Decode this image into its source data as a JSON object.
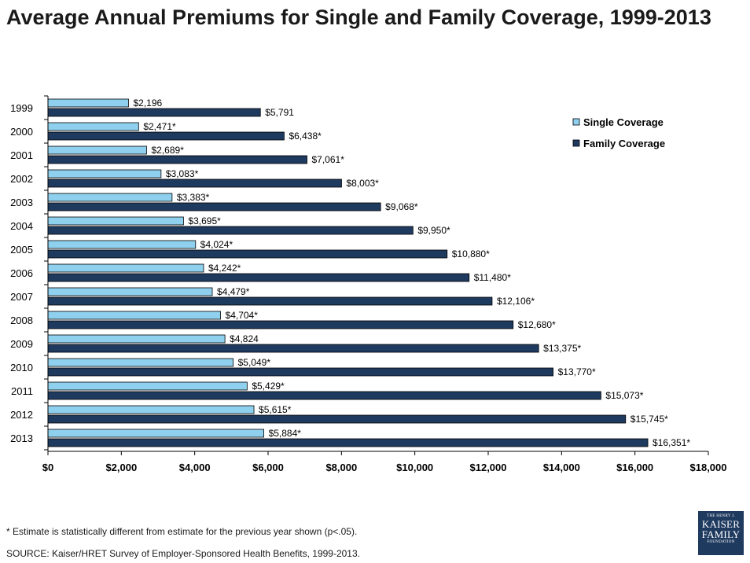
{
  "title": "Average Annual Premiums for Single and Family Coverage, 1999-2013",
  "footnote": "* Estimate is statistically different from estimate for the previous year shown (p<.05).",
  "source": "SOURCE:  Kaiser/HRET Survey of Employer-Sponsored Health Benefits, 1999-2013.",
  "logo": {
    "line1": "THE HENRY J.",
    "line2": "KAISER",
    "line3": "FAMILY",
    "line4": "FOUNDATION"
  },
  "colors": {
    "single": "#8fd0ee",
    "family": "#1f3a5f",
    "bar_border": "#000000",
    "axis": "#000000"
  },
  "chart_data": {
    "type": "bar",
    "orientation": "horizontal",
    "title": "Average Annual Premiums for Single and Family Coverage, 1999-2013",
    "xlabel": "",
    "ylabel": "",
    "xlim": [
      0,
      18000
    ],
    "ticks": [
      0,
      2000,
      4000,
      6000,
      8000,
      10000,
      12000,
      14000,
      16000,
      18000
    ],
    "tick_labels": [
      "$0",
      "$2,000",
      "$4,000",
      "$6,000",
      "$8,000",
      "$10,000",
      "$12,000",
      "$14,000",
      "$16,000",
      "$18,000"
    ],
    "legend_position": "top-right",
    "categories": [
      "1999",
      "2000",
      "2001",
      "2002",
      "2003",
      "2004",
      "2005",
      "2006",
      "2007",
      "2008",
      "2009",
      "2010",
      "2011",
      "2012",
      "2013"
    ],
    "series": [
      {
        "name": "Single Coverage",
        "values": [
          2196,
          2471,
          2689,
          3083,
          3383,
          3695,
          4024,
          4242,
          4479,
          4704,
          4824,
          5049,
          5429,
          5615,
          5884
        ],
        "labels": [
          "$2,196",
          "$2,471*",
          "$2,689*",
          "$3,083*",
          "$3,383*",
          "$3,695*",
          "$4,024*",
          "$4,242*",
          "$4,479*",
          "$4,704*",
          "$4,824",
          "$5,049*",
          "$5,429*",
          "$5,615*",
          "$5,884*"
        ]
      },
      {
        "name": "Family Coverage",
        "values": [
          5791,
          6438,
          7061,
          8003,
          9068,
          9950,
          10880,
          11480,
          12106,
          12680,
          13375,
          13770,
          15073,
          15745,
          16351
        ],
        "labels": [
          "$5,791",
          "$6,438*",
          "$7,061*",
          "$8,003*",
          "$9,068*",
          "$9,950*",
          "$10,880*",
          "$11,480*",
          "$12,106*",
          "$12,680*",
          "$13,375*",
          "$13,770*",
          "$15,073*",
          "$15,745*",
          "$16,351*"
        ]
      }
    ]
  }
}
